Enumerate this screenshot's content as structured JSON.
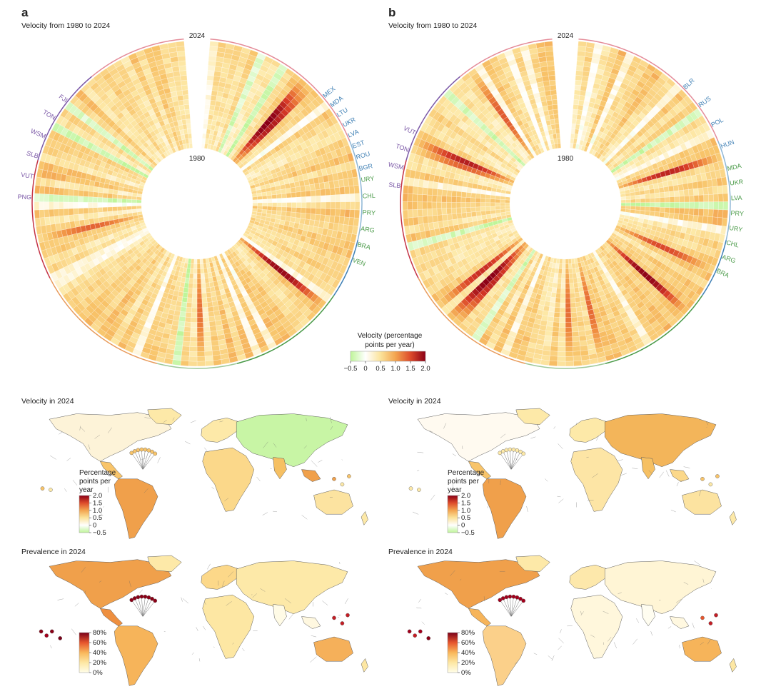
{
  "panels": [
    {
      "letter": "a",
      "velocity_title": "Velocity from 1980 to 2024"
    },
    {
      "letter": "b",
      "velocity_title": "Velocity from 1980 to 2024"
    }
  ],
  "maps": {
    "velocity_title": "Velocity in 2024",
    "prevalence_title": "Prevalence in 2024",
    "velocity_legend_title": "Percentage points per year",
    "prevalence_ticks": [
      "80%",
      "60%",
      "40%",
      "20%",
      "0%"
    ],
    "velocity_map_ticks": [
      "2.0",
      "1.5",
      "1.0",
      "0.5",
      "0",
      "−0.5"
    ]
  },
  "chart_data": [
    {
      "type": "heatmap",
      "layout": "circular",
      "panel": "a",
      "title": "Velocity from 1980 to 2024",
      "inner_year": "1980",
      "outer_year": "2024",
      "country_labels_visible": [
        "PNG",
        "VUT",
        "SLB",
        "WSM",
        "TON",
        "FJI",
        "URY",
        "CHL",
        "PRY",
        "ARG",
        "BRA",
        "VEN",
        "MEX",
        "MDA",
        "LTU",
        "UKR",
        "LVA",
        "EST",
        "ROU",
        "BGR"
      ],
      "colorbar": {
        "label": "Velocity (percentage points per year)",
        "ticks": [
          "−0.5",
          "0",
          "0.5",
          "1.0",
          "1.5",
          "2.0"
        ],
        "range": [
          -0.5,
          2.0
        ]
      }
    },
    {
      "type": "heatmap",
      "layout": "circular",
      "panel": "b",
      "title": "Velocity from 1980 to 2024",
      "inner_year": "1980",
      "outer_year": "2024",
      "country_labels_visible": [
        "SLB",
        "WSM",
        "TON",
        "VUT",
        "MDA",
        "UKR",
        "LVA",
        "PRY",
        "URY",
        "CHL",
        "ARG",
        "BRA",
        "BLR",
        "RUS",
        "POL",
        "HUN"
      ]
    },
    {
      "type": "heatmap",
      "layout": "choropleth",
      "panel": "a",
      "title": "Velocity in 2024",
      "legend_ticks": [
        "2.0",
        "1.5",
        "1.0",
        "0.5",
        "0",
        "−0.5"
      ]
    },
    {
      "type": "heatmap",
      "layout": "choropleth",
      "panel": "b",
      "title": "Velocity in 2024",
      "legend_ticks": [
        "2.0",
        "1.5",
        "1.0",
        "0.5",
        "0",
        "−0.5"
      ]
    },
    {
      "type": "heatmap",
      "layout": "choropleth",
      "panel": "a",
      "title": "Prevalence in 2024",
      "legend_ticks": [
        "80%",
        "60%",
        "40%",
        "20%",
        "0%"
      ]
    },
    {
      "type": "heatmap",
      "layout": "choropleth",
      "panel": "b",
      "title": "Prevalence in 2024",
      "legend_ticks": [
        "80%",
        "60%",
        "40%",
        "20%",
        "0%"
      ]
    }
  ],
  "colors": {
    "velocity_scale": [
      "#bff59a",
      "#ffffff",
      "#fde9a8",
      "#f8c46a",
      "#ef8a3e",
      "#d73a26",
      "#8b0016"
    ],
    "prevalence_scale": [
      "#fffde8",
      "#fde7a3",
      "#f9b75a",
      "#ee7b35",
      "#c41d24",
      "#7a0018"
    ],
    "region_colors": [
      "#e48b98",
      "#8fb7d6",
      "#3e7fb4",
      "#4a9a48",
      "#9ec99a",
      "#e89a5a",
      "#c43345",
      "#7a57a6"
    ]
  }
}
